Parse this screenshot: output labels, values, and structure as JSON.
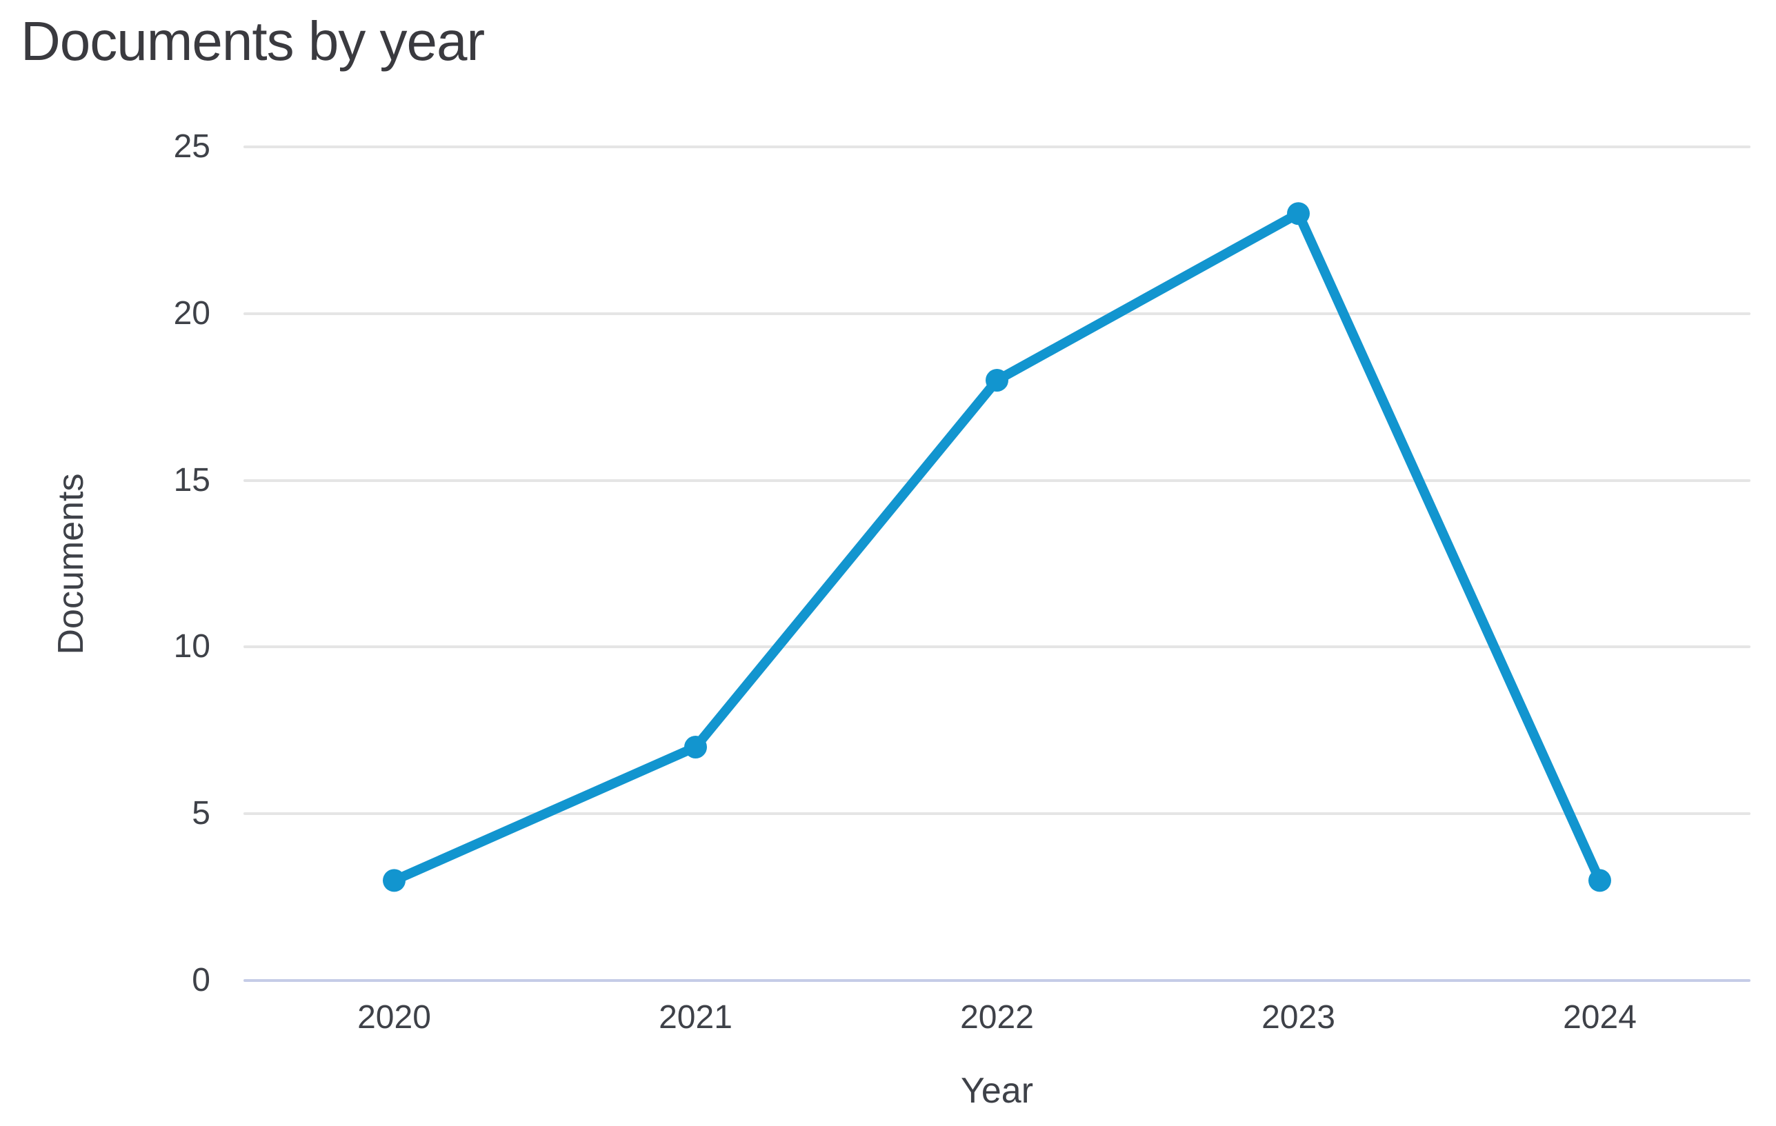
{
  "page_title": "Documents by year",
  "chart_data": {
    "type": "line",
    "title": "Documents by year",
    "xlabel": "Year",
    "ylabel": "Documents",
    "categories": [
      "2020",
      "2021",
      "2022",
      "2023",
      "2024"
    ],
    "series": [
      {
        "name": "Documents",
        "values": [
          3,
          7,
          18,
          23,
          3
        ]
      }
    ],
    "ylim": [
      0,
      25
    ],
    "yticks": [
      0,
      5,
      10,
      15,
      20,
      25
    ],
    "grid": "horizontal",
    "legend_position": "none",
    "marker": "circle",
    "colors": {
      "line": "#1295cf",
      "marker": "#1295cf",
      "gridline": "#e5e5e5",
      "baseline": "#c5cce7",
      "title_text": "#3a3a3f",
      "tick_text": "#3e4148",
      "axis_label_text": "#3e4148"
    }
  }
}
